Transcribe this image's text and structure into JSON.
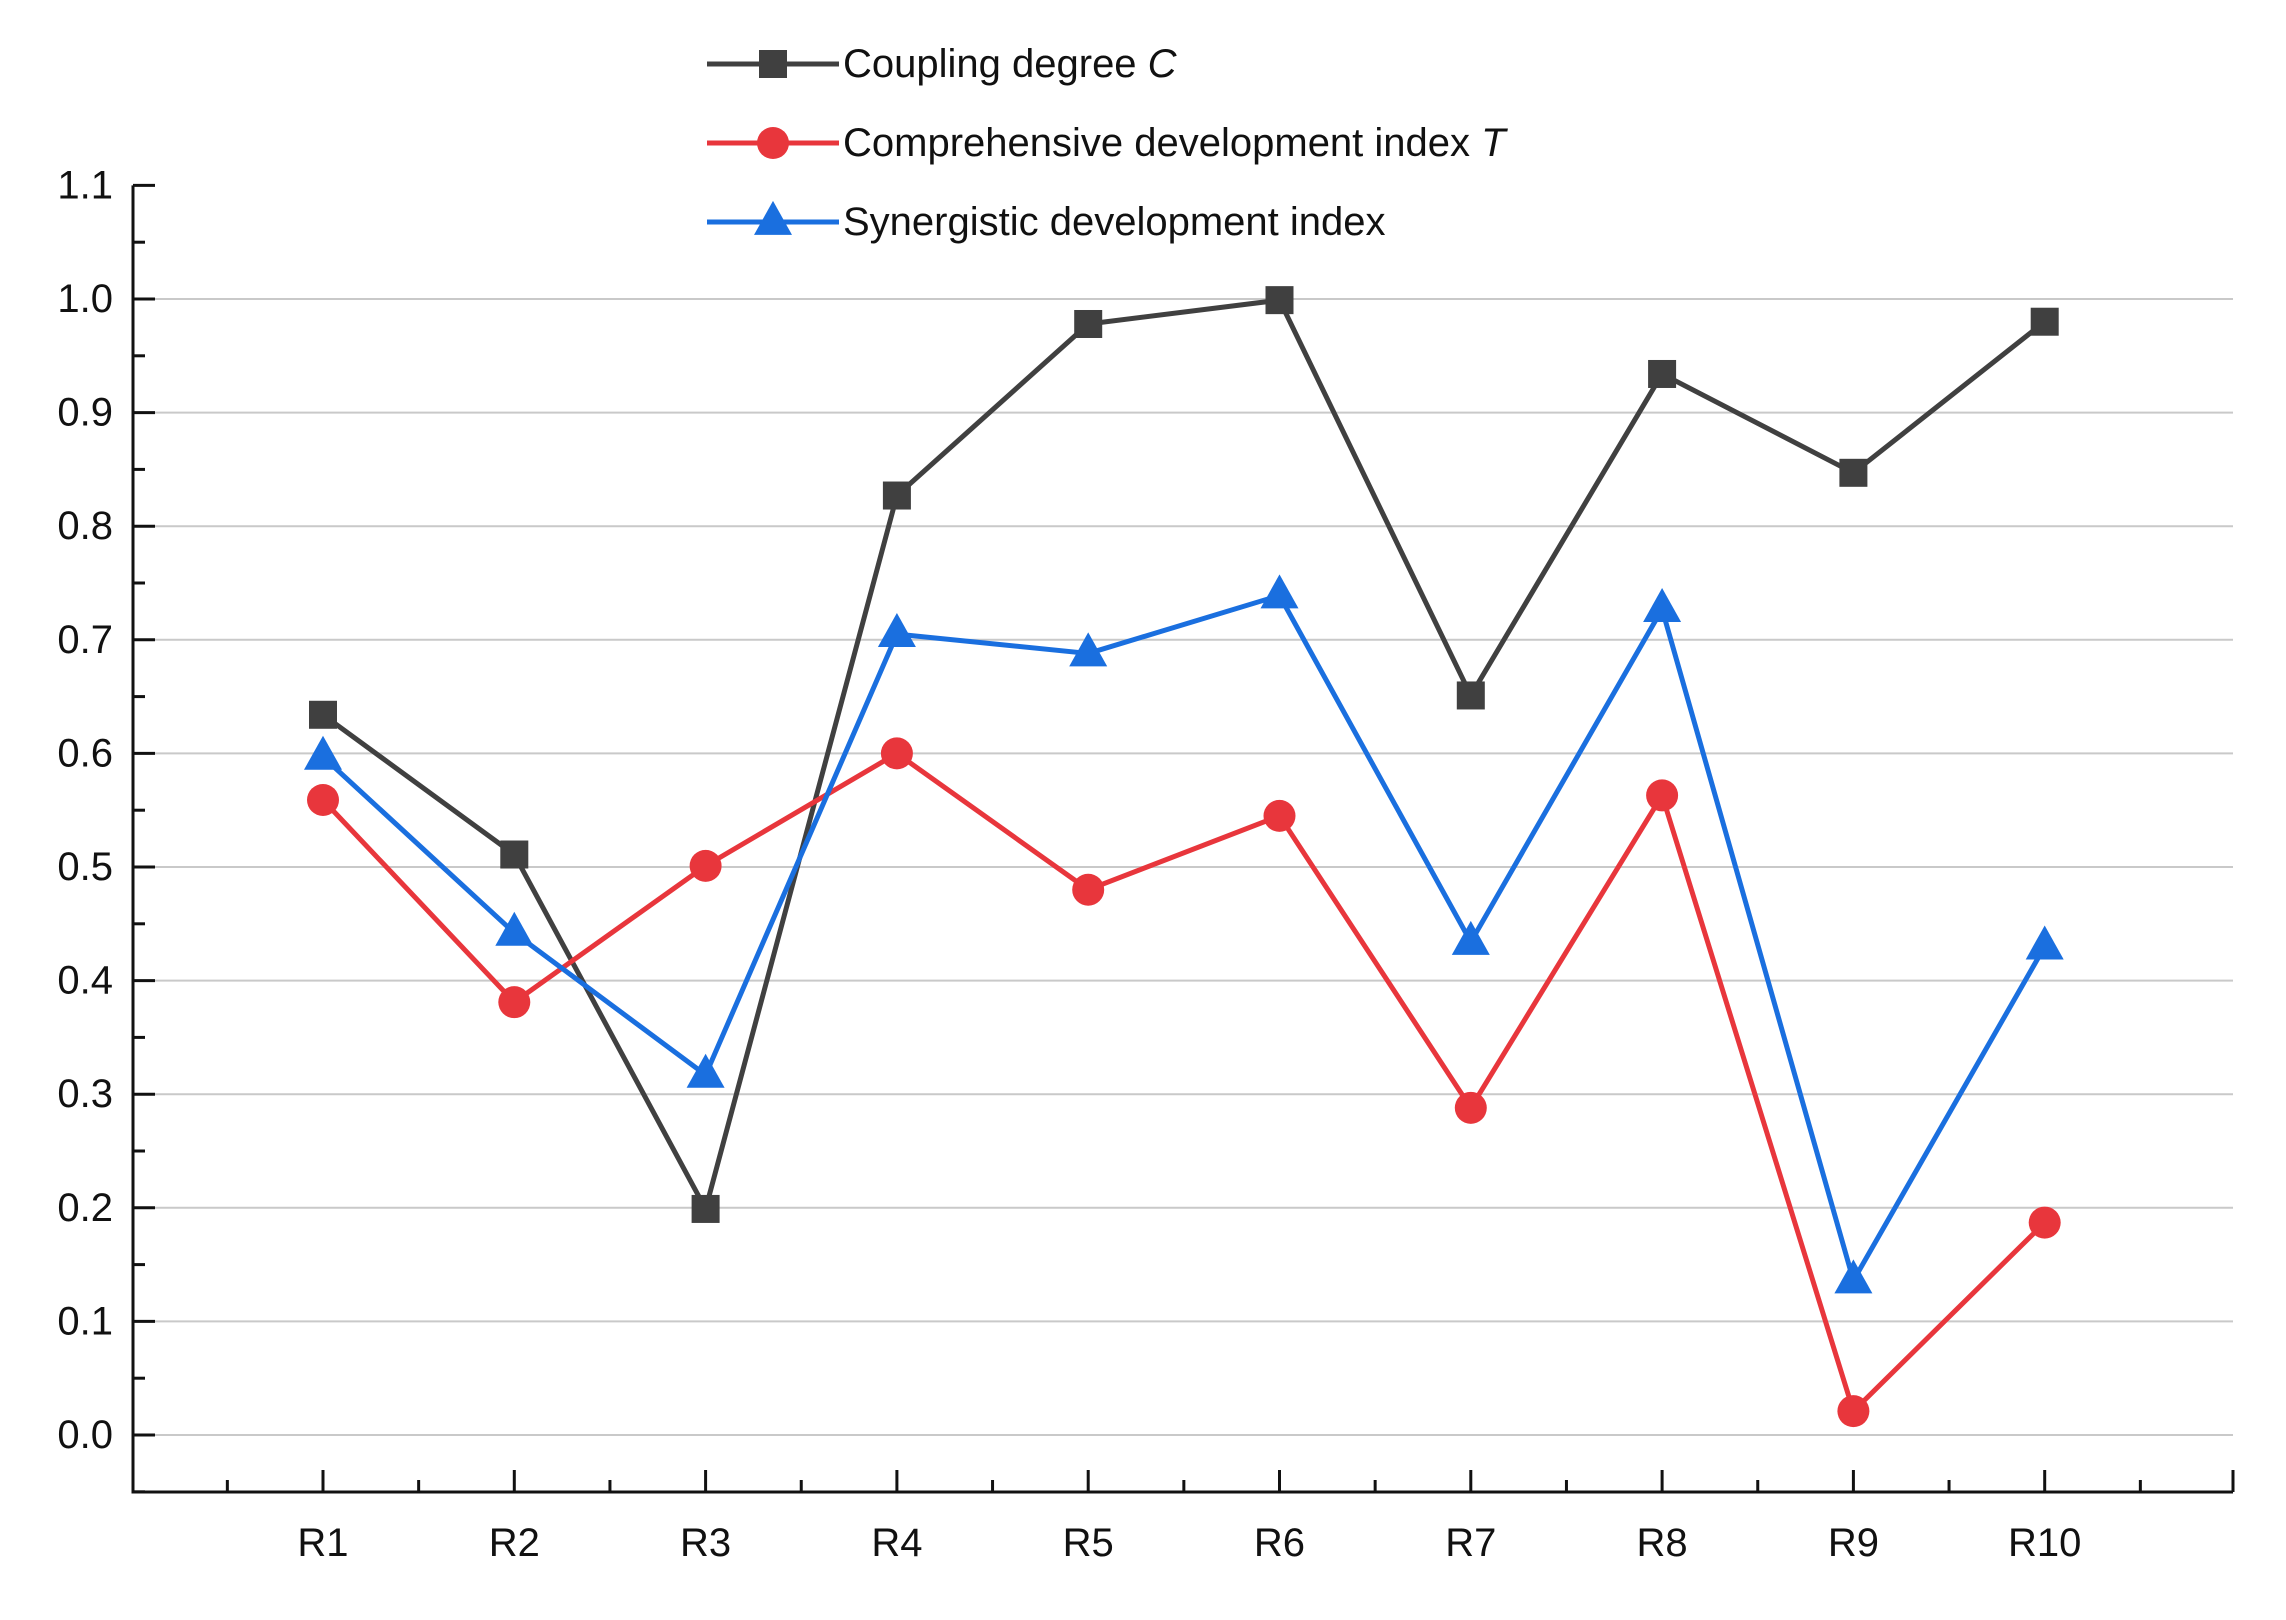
{
  "chart_data": {
    "type": "line",
    "title": "",
    "xlabel": "",
    "ylabel": "",
    "categories": [
      "R1",
      "R2",
      "R3",
      "R4",
      "R5",
      "R6",
      "R7",
      "R8",
      "R9",
      "R10"
    ],
    "ylim": [
      -0.05,
      1.1
    ],
    "yticks": [
      0.0,
      0.1,
      0.2,
      0.3,
      0.4,
      0.5,
      0.6,
      0.7,
      0.8,
      0.9,
      1.0,
      1.1
    ],
    "ytick_labels": [
      "0.0",
      "0.1",
      "0.2",
      "0.3",
      "0.4",
      "0.5",
      "0.6",
      "0.7",
      "0.8",
      "0.9",
      "1.0",
      "1.1"
    ],
    "grid": true,
    "legend_position": "top-center",
    "series": [
      {
        "name": "Coupling degree C",
        "legend_text": "Coupling degree ",
        "legend_var": "C",
        "marker": "square",
        "color": "#404040",
        "values": [
          0.634,
          0.511,
          0.199,
          0.827,
          0.978,
          0.999,
          0.651,
          0.934,
          0.847,
          0.98
        ]
      },
      {
        "name": "Comprehensive development index T",
        "legend_text": "Comprehensive development index ",
        "legend_var": "T",
        "marker": "circle",
        "color": "#e8363c",
        "values": [
          0.559,
          0.381,
          0.501,
          0.6,
          0.48,
          0.545,
          0.288,
          0.563,
          0.021,
          0.187
        ]
      },
      {
        "name": "Synergistic development index",
        "legend_text": "Synergistic development index",
        "legend_var": "",
        "marker": "triangle",
        "color": "#1a6fdf",
        "values": [
          0.597,
          0.442,
          0.317,
          0.705,
          0.688,
          0.739,
          0.434,
          0.727,
          0.136,
          0.43
        ]
      }
    ]
  }
}
